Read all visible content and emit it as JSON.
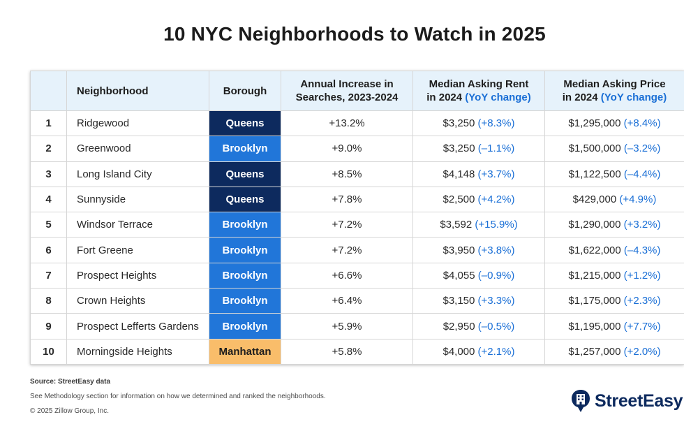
{
  "title": "10 NYC Neighborhoods to Watch in 2025",
  "headers": {
    "rank": "",
    "neighborhood": "Neighborhood",
    "borough": "Borough",
    "increase_l1": "Annual Increase in",
    "increase_l2": "Searches, 2023-2024",
    "rent_l1": "Median Asking Rent",
    "rent_l2": "in 2024",
    "rent_yoy": "(YoY change)",
    "price_l1": "Median Asking Price",
    "price_l2": "in 2024",
    "price_yoy": "(YoY change)"
  },
  "rows": [
    {
      "rank": "1",
      "name": "Ridgewood",
      "borough": "Queens",
      "boro_class": "queens",
      "increase": "+13.2%",
      "rent": "$3,250",
      "rent_chg": "(+8.3%)",
      "price": "$1,295,000",
      "price_chg": "(+8.4%)"
    },
    {
      "rank": "2",
      "name": "Greenwood",
      "borough": "Brooklyn",
      "boro_class": "brooklyn",
      "increase": "+9.0%",
      "rent": "$3,250",
      "rent_chg": "(–1.1%)",
      "price": "$1,500,000",
      "price_chg": "(–3.2%)"
    },
    {
      "rank": "3",
      "name": "Long Island City",
      "borough": "Queens",
      "boro_class": "queens",
      "increase": "+8.5%",
      "rent": "$4,148",
      "rent_chg": "(+3.7%)",
      "price": "$1,122,500",
      "price_chg": "(–4.4%)"
    },
    {
      "rank": "4",
      "name": "Sunnyside",
      "borough": "Queens",
      "boro_class": "queens",
      "increase": "+7.8%",
      "rent": "$2,500",
      "rent_chg": "(+4.2%)",
      "price": "$429,000",
      "price_chg": "(+4.9%)"
    },
    {
      "rank": "5",
      "name": "Windsor Terrace",
      "borough": "Brooklyn",
      "boro_class": "brooklyn",
      "increase": "+7.2%",
      "rent": "$3,592",
      "rent_chg": "(+15.9%)",
      "price": "$1,290,000",
      "price_chg": "(+3.2%)"
    },
    {
      "rank": "6",
      "name": "Fort Greene",
      "borough": "Brooklyn",
      "boro_class": "brooklyn",
      "increase": "+7.2%",
      "rent": "$3,950",
      "rent_chg": "(+3.8%)",
      "price": "$1,622,000",
      "price_chg": "(–4.3%)"
    },
    {
      "rank": "7",
      "name": "Prospect Heights",
      "borough": "Brooklyn",
      "boro_class": "brooklyn",
      "increase": "+6.6%",
      "rent": "$4,055",
      "rent_chg": "(–0.9%)",
      "price": "$1,215,000",
      "price_chg": "(+1.2%)"
    },
    {
      "rank": "8",
      "name": "Crown Heights",
      "borough": "Brooklyn",
      "boro_class": "brooklyn",
      "increase": "+6.4%",
      "rent": "$3,150",
      "rent_chg": "(+3.3%)",
      "price": "$1,175,000",
      "price_chg": "(+2.3%)"
    },
    {
      "rank": "9",
      "name": "Prospect Lefferts Gardens",
      "borough": "Brooklyn",
      "boro_class": "brooklyn",
      "increase": "+5.9%",
      "rent": "$2,950",
      "rent_chg": "(–0.5%)",
      "price": "$1,195,000",
      "price_chg": "(+7.7%)"
    },
    {
      "rank": "10",
      "name": "Morningside Heights",
      "borough": "Manhattan",
      "boro_class": "manhattan",
      "increase": "+5.8%",
      "rent": "$4,000",
      "rent_chg": "(+2.1%)",
      "price": "$1,257,000",
      "price_chg": "(+2.0%)"
    }
  ],
  "footer": {
    "source": "Source: StreetEasy data",
    "methodology": "See Methodology section for information on how we determined and ranked the neighborhoods.",
    "copyright": "© 2025 Zillow Group, Inc."
  },
  "logo": {
    "text": "StreetEasy",
    "icon": "streeteasy-building-icon"
  },
  "colors": {
    "queens": "#0d2a5e",
    "brooklyn": "#2176d9",
    "manhattan": "#f9bd6a",
    "header_bg": "#e6f2fb",
    "accent": "#1a6fd6"
  }
}
